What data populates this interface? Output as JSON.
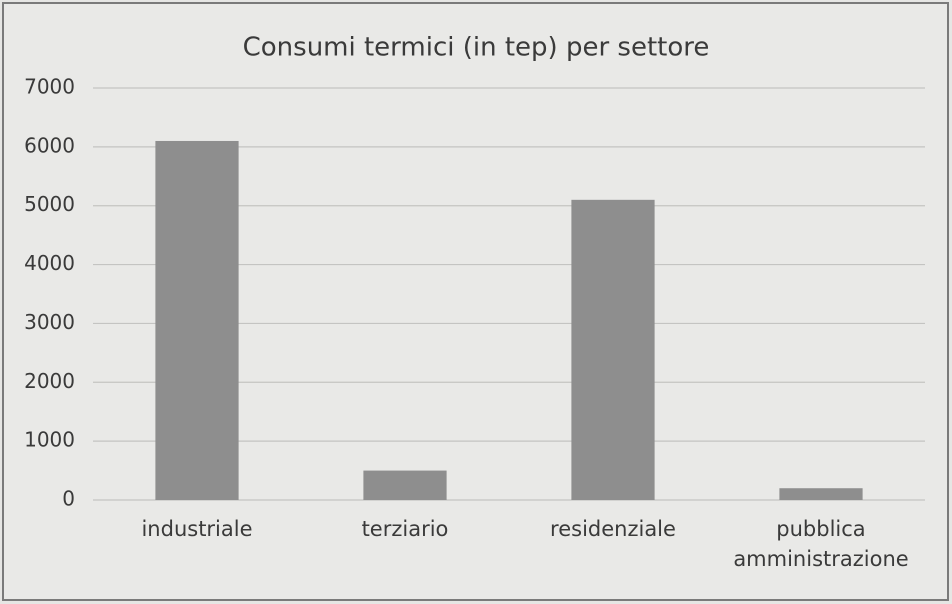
{
  "chart_data": {
    "type": "bar",
    "title": "Consumi termici (in tep) per settore",
    "categories": [
      "industriale",
      "terziario",
      "residenziale",
      "pubblica amministrazione"
    ],
    "values": [
      6100,
      500,
      5100,
      200
    ],
    "color": "#8e8e8e",
    "ylim": [
      0,
      7000
    ],
    "yticks": [
      0,
      1000,
      2000,
      3000,
      4000,
      5000,
      6000,
      7000
    ],
    "grid": true
  }
}
